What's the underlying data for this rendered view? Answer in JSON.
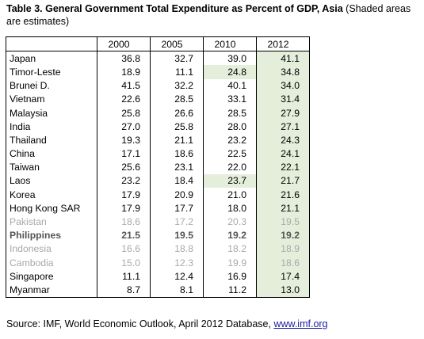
{
  "title": {
    "bold": "Table 3. General Government Total Expenditure as Percent of GDP, Asia",
    "note": "(Shaded areas are estimates)"
  },
  "table": {
    "headers": [
      "",
      "2000",
      "2005",
      "2010",
      "2012"
    ],
    "rows": [
      {
        "country": "Japan",
        "v2000": "36.8",
        "v2005": "32.7",
        "v2010": "39.0",
        "v2012": "41.1"
      },
      {
        "country": "Timor-Leste",
        "v2000": "18.9",
        "v2005": "11.1",
        "v2010": "24.8",
        "v2012": "34.8"
      },
      {
        "country": "Brunei D.",
        "v2000": "41.5",
        "v2005": "32.2",
        "v2010": "40.1",
        "v2012": "34.0"
      },
      {
        "country": "Vietnam",
        "v2000": "22.6",
        "v2005": "28.5",
        "v2010": "33.1",
        "v2012": "31.4"
      },
      {
        "country": "Malaysia",
        "v2000": "25.8",
        "v2005": "26.6",
        "v2010": "28.5",
        "v2012": "27.9"
      },
      {
        "country": "India",
        "v2000": "27.0",
        "v2005": "25.8",
        "v2010": "28.0",
        "v2012": "27.1"
      },
      {
        "country": "Thailand",
        "v2000": "19.3",
        "v2005": "21.1",
        "v2010": "23.2",
        "v2012": "24.3"
      },
      {
        "country": "China",
        "v2000": "17.1",
        "v2005": "18.6",
        "v2010": "22.5",
        "v2012": "24.1"
      },
      {
        "country": "Taiwan",
        "v2000": "25.6",
        "v2005": "23.1",
        "v2010": "22.0",
        "v2012": "22.1"
      },
      {
        "country": "Laos",
        "v2000": "23.2",
        "v2005": "18.4",
        "v2010": "23.7",
        "v2012": "21.7"
      },
      {
        "country": "Korea",
        "v2000": "17.9",
        "v2005": "20.9",
        "v2010": "21.0",
        "v2012": "21.6"
      },
      {
        "country": "Hong Kong SAR",
        "v2000": "17.9",
        "v2005": "17.7",
        "v2010": "18.0",
        "v2012": "21.1"
      },
      {
        "country": "Pakistan",
        "v2000": "18.6",
        "v2005": "17.2",
        "v2010": "20.3",
        "v2012": "19.5"
      },
      {
        "country": "Philippines",
        "v2000": "21.5",
        "v2005": "19.5",
        "v2010": "19.2",
        "v2012": "19.2"
      },
      {
        "country": "Indonesia",
        "v2000": "16.6",
        "v2005": "18.8",
        "v2010": "18.2",
        "v2012": "18.9"
      },
      {
        "country": "Cambodia",
        "v2000": "15.0",
        "v2005": "12.3",
        "v2010": "19.9",
        "v2012": "18.6"
      },
      {
        "country": "Singapore",
        "v2000": "11.1",
        "v2005": "12.4",
        "v2010": "16.9",
        "v2012": "17.4"
      },
      {
        "country": "Myanmar",
        "v2000": "8.7",
        "v2005": "8.1",
        "v2010": "11.2",
        "v2012": "13.0"
      }
    ]
  },
  "source": {
    "text": "Source: IMF, World Economic Outlook, April 2012 Database, ",
    "link": "www.imf.org"
  },
  "colors": {
    "shade": "#e4eedb",
    "link": "#1a1aa6"
  }
}
